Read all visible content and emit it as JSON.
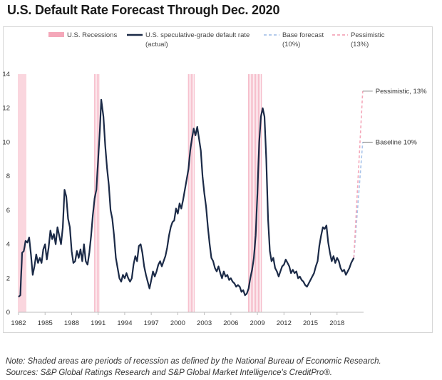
{
  "chart_data": {
    "type": "line",
    "title": "U.S. Default Rate Forecast Through Dec. 2020",
    "xlabel": "",
    "ylabel": "",
    "xlim": [
      1982,
      2021
    ],
    "ylim": [
      0,
      14
    ],
    "y_ticks": [
      0,
      2,
      4,
      6,
      8,
      10,
      12,
      14
    ],
    "x_ticks": [
      1982,
      1985,
      1988,
      1991,
      1994,
      1997,
      2000,
      2003,
      2006,
      2009,
      2012,
      2015,
      2018
    ],
    "grid": false,
    "legend_position": "top",
    "legend": [
      {
        "key": "recessions",
        "label": "U.S. Recessions",
        "color": "#f4a7b9"
      },
      {
        "key": "actual",
        "label": "U.S. speculative-grade default rate",
        "label2": "(actual)",
        "color": "#1b2a47"
      },
      {
        "key": "base",
        "label": "Base forecast",
        "label2": "(10%)",
        "color": "#a9c4ea"
      },
      {
        "key": "pessimistic",
        "label": "Pessimistic",
        "label2": "(13%)",
        "color": "#f4a7b9"
      }
    ],
    "recessions": [
      [
        1982.0,
        1982.9
      ],
      [
        1990.6,
        1991.2
      ],
      [
        2001.2,
        2001.9
      ],
      [
        2008.0,
        2009.5
      ]
    ],
    "series": [
      {
        "key": "actual",
        "points": [
          [
            1982.0,
            0.9
          ],
          [
            1982.2,
            1.0
          ],
          [
            1982.4,
            3.5
          ],
          [
            1982.6,
            3.6
          ],
          [
            1982.8,
            4.2
          ],
          [
            1983.0,
            4.1
          ],
          [
            1983.2,
            4.4
          ],
          [
            1983.4,
            3.4
          ],
          [
            1983.6,
            2.2
          ],
          [
            1983.8,
            2.7
          ],
          [
            1984.0,
            3.4
          ],
          [
            1984.2,
            2.9
          ],
          [
            1984.4,
            3.2
          ],
          [
            1984.6,
            2.9
          ],
          [
            1984.8,
            3.7
          ],
          [
            1985.0,
            4.0
          ],
          [
            1985.2,
            3.1
          ],
          [
            1985.4,
            3.8
          ],
          [
            1985.6,
            4.8
          ],
          [
            1985.8,
            4.3
          ],
          [
            1986.0,
            4.6
          ],
          [
            1986.2,
            4.0
          ],
          [
            1986.4,
            5.0
          ],
          [
            1986.6,
            4.5
          ],
          [
            1986.8,
            4.0
          ],
          [
            1987.0,
            5.0
          ],
          [
            1987.2,
            7.2
          ],
          [
            1987.4,
            6.8
          ],
          [
            1987.6,
            5.5
          ],
          [
            1987.8,
            5.0
          ],
          [
            1988.0,
            3.6
          ],
          [
            1988.2,
            2.9
          ],
          [
            1988.4,
            3.0
          ],
          [
            1988.6,
            3.6
          ],
          [
            1988.8,
            3.2
          ],
          [
            1989.0,
            3.7
          ],
          [
            1989.2,
            3.0
          ],
          [
            1989.4,
            4.0
          ],
          [
            1989.6,
            3.0
          ],
          [
            1989.8,
            2.8
          ],
          [
            1990.0,
            3.5
          ],
          [
            1990.2,
            4.5
          ],
          [
            1990.4,
            5.7
          ],
          [
            1990.6,
            6.7
          ],
          [
            1990.8,
            7.2
          ],
          [
            1991.0,
            9.0
          ],
          [
            1991.2,
            10.8
          ],
          [
            1991.35,
            12.5
          ],
          [
            1991.6,
            11.5
          ],
          [
            1991.8,
            9.8
          ],
          [
            1992.0,
            8.5
          ],
          [
            1992.2,
            7.5
          ],
          [
            1992.4,
            6.0
          ],
          [
            1992.6,
            5.5
          ],
          [
            1992.8,
            4.5
          ],
          [
            1993.0,
            3.2
          ],
          [
            1993.2,
            2.6
          ],
          [
            1993.4,
            2.0
          ],
          [
            1993.6,
            1.8
          ],
          [
            1993.8,
            2.2
          ],
          [
            1994.0,
            2.0
          ],
          [
            1994.2,
            2.3
          ],
          [
            1994.4,
            2.0
          ],
          [
            1994.6,
            1.8
          ],
          [
            1994.8,
            2.0
          ],
          [
            1995.0,
            2.8
          ],
          [
            1995.2,
            3.3
          ],
          [
            1995.4,
            3.0
          ],
          [
            1995.6,
            3.9
          ],
          [
            1995.8,
            4.0
          ],
          [
            1996.0,
            3.5
          ],
          [
            1996.2,
            2.7
          ],
          [
            1996.4,
            2.2
          ],
          [
            1996.6,
            1.8
          ],
          [
            1996.8,
            1.4
          ],
          [
            1997.0,
            1.9
          ],
          [
            1997.2,
            2.4
          ],
          [
            1997.4,
            2.1
          ],
          [
            1997.6,
            2.4
          ],
          [
            1997.8,
            2.8
          ],
          [
            1998.0,
            3.0
          ],
          [
            1998.2,
            2.7
          ],
          [
            1998.4,
            3.0
          ],
          [
            1998.6,
            3.3
          ],
          [
            1998.8,
            3.8
          ],
          [
            1999.0,
            4.5
          ],
          [
            1999.2,
            5.0
          ],
          [
            1999.4,
            5.3
          ],
          [
            1999.6,
            5.4
          ],
          [
            1999.8,
            6.1
          ],
          [
            2000.0,
            5.8
          ],
          [
            2000.2,
            6.4
          ],
          [
            2000.4,
            6.1
          ],
          [
            2000.6,
            6.6
          ],
          [
            2000.8,
            7.2
          ],
          [
            2001.0,
            7.8
          ],
          [
            2001.2,
            8.4
          ],
          [
            2001.4,
            9.5
          ],
          [
            2001.6,
            10.2
          ],
          [
            2001.8,
            10.8
          ],
          [
            2002.0,
            10.4
          ],
          [
            2002.2,
            10.9
          ],
          [
            2002.4,
            10.2
          ],
          [
            2002.6,
            9.5
          ],
          [
            2002.8,
            8.0
          ],
          [
            2003.0,
            7.0
          ],
          [
            2003.2,
            6.2
          ],
          [
            2003.4,
            5.0
          ],
          [
            2003.6,
            4.0
          ],
          [
            2003.8,
            3.2
          ],
          [
            2004.0,
            3.0
          ],
          [
            2004.2,
            2.6
          ],
          [
            2004.4,
            2.4
          ],
          [
            2004.6,
            2.7
          ],
          [
            2004.8,
            2.3
          ],
          [
            2005.0,
            2.0
          ],
          [
            2005.2,
            2.4
          ],
          [
            2005.4,
            2.1
          ],
          [
            2005.6,
            2.2
          ],
          [
            2005.8,
            1.9
          ],
          [
            2006.0,
            2.0
          ],
          [
            2006.2,
            1.8
          ],
          [
            2006.4,
            1.7
          ],
          [
            2006.6,
            1.5
          ],
          [
            2006.8,
            1.6
          ],
          [
            2007.0,
            1.5
          ],
          [
            2007.2,
            1.2
          ],
          [
            2007.4,
            1.3
          ],
          [
            2007.6,
            1.0
          ],
          [
            2007.8,
            1.1
          ],
          [
            2008.0,
            1.4
          ],
          [
            2008.2,
            2.0
          ],
          [
            2008.4,
            2.5
          ],
          [
            2008.6,
            3.2
          ],
          [
            2008.8,
            4.5
          ],
          [
            2009.0,
            7.0
          ],
          [
            2009.2,
            10.0
          ],
          [
            2009.4,
            11.5
          ],
          [
            2009.6,
            12.0
          ],
          [
            2009.8,
            11.5
          ],
          [
            2010.0,
            9.0
          ],
          [
            2010.2,
            5.5
          ],
          [
            2010.4,
            3.6
          ],
          [
            2010.6,
            3.0
          ],
          [
            2010.8,
            3.2
          ],
          [
            2011.0,
            2.6
          ],
          [
            2011.2,
            2.4
          ],
          [
            2011.4,
            2.1
          ],
          [
            2011.6,
            2.4
          ],
          [
            2011.8,
            2.7
          ],
          [
            2012.0,
            2.8
          ],
          [
            2012.2,
            3.1
          ],
          [
            2012.4,
            2.9
          ],
          [
            2012.6,
            2.7
          ],
          [
            2012.8,
            2.3
          ],
          [
            2013.0,
            2.5
          ],
          [
            2013.2,
            2.3
          ],
          [
            2013.4,
            2.4
          ],
          [
            2013.6,
            2.0
          ],
          [
            2013.8,
            2.1
          ],
          [
            2014.0,
            1.9
          ],
          [
            2014.2,
            1.8
          ],
          [
            2014.4,
            1.6
          ],
          [
            2014.6,
            1.5
          ],
          [
            2014.8,
            1.7
          ],
          [
            2015.0,
            1.9
          ],
          [
            2015.2,
            2.1
          ],
          [
            2015.4,
            2.3
          ],
          [
            2015.6,
            2.7
          ],
          [
            2015.8,
            3.0
          ],
          [
            2016.0,
            3.9
          ],
          [
            2016.2,
            4.5
          ],
          [
            2016.4,
            5.0
          ],
          [
            2016.6,
            4.9
          ],
          [
            2016.8,
            5.1
          ],
          [
            2017.0,
            4.1
          ],
          [
            2017.2,
            3.5
          ],
          [
            2017.4,
            3.0
          ],
          [
            2017.6,
            3.3
          ],
          [
            2017.8,
            2.9
          ],
          [
            2018.0,
            3.2
          ],
          [
            2018.2,
            3.0
          ],
          [
            2018.4,
            2.6
          ],
          [
            2018.6,
            2.4
          ],
          [
            2018.8,
            2.5
          ],
          [
            2019.0,
            2.2
          ],
          [
            2019.2,
            2.4
          ],
          [
            2019.4,
            2.6
          ],
          [
            2019.6,
            2.9
          ],
          [
            2019.8,
            3.1
          ],
          [
            2019.9,
            3.2
          ]
        ]
      },
      {
        "key": "base",
        "points": [
          [
            2019.9,
            3.2
          ],
          [
            2020.9,
            10.0
          ]
        ]
      },
      {
        "key": "pessimistic",
        "points": [
          [
            2019.9,
            3.2
          ],
          [
            2020.9,
            13.0
          ]
        ]
      }
    ],
    "annotations": [
      {
        "key": "pessimistic",
        "text": "Pessimistic, 13%",
        "y": 13.0
      },
      {
        "key": "baseline",
        "text": "Baseline 10%",
        "y": 10.0
      }
    ]
  },
  "footnote": {
    "line1": "Note: Shaded areas are periods of recession as defined by the National Bureau of Economic Research.",
    "line2": "Sources: S&P Global Ratings Research and S&P Global Market Intelligence's CreditPro®."
  }
}
